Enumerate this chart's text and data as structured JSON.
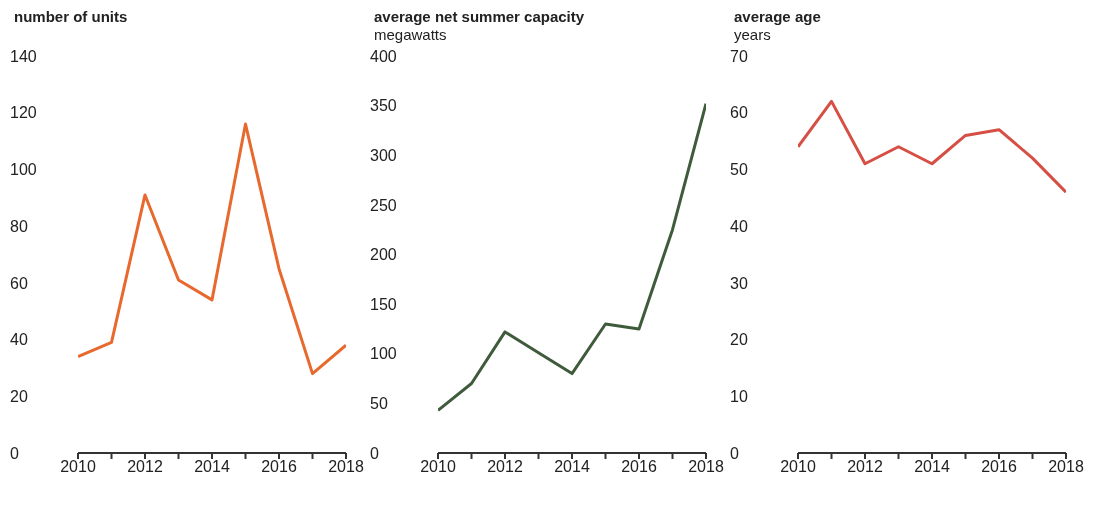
{
  "chart_data": [
    {
      "type": "line",
      "title": "number of units",
      "x": [
        2010,
        2011,
        2012,
        2013,
        2014,
        2015,
        2016,
        2017,
        2018
      ],
      "series": [
        {
          "color": "#e8692e",
          "values": [
            34,
            39,
            91,
            61,
            54,
            116,
            65,
            28,
            38
          ]
        }
      ],
      "xlim": [
        2010,
        2018
      ],
      "xticks": [
        2010,
        {
          "value": 2011,
          "label": null
        },
        2012,
        {
          "value": 2013,
          "label": null
        },
        2014,
        {
          "value": 2015,
          "label": null
        },
        2016,
        {
          "value": 2017,
          "label": null
        },
        2018
      ],
      "ylim": [
        0,
        140
      ],
      "yticks": [
        0,
        20,
        40,
        60,
        80,
        100,
        120,
        140
      ],
      "grid": false,
      "legend": false
    },
    {
      "type": "line",
      "title": "average net summer capacity",
      "ylabel": "megawatts",
      "x": [
        2010,
        2011,
        2012,
        2013,
        2014,
        2015,
        2016,
        2017,
        2018
      ],
      "series": [
        {
          "color": "#3f5b3c",
          "values": [
            43,
            70,
            122,
            101,
            80,
            130,
            125,
            225,
            352
          ]
        }
      ],
      "xlim": [
        2010,
        2018
      ],
      "xticks": [
        2010,
        {
          "value": 2011,
          "label": null
        },
        2012,
        {
          "value": 2013,
          "label": null
        },
        2014,
        {
          "value": 2015,
          "label": null
        },
        2016,
        {
          "value": 2017,
          "label": null
        },
        2018
      ],
      "ylim": [
        0,
        400
      ],
      "yticks": [
        0,
        50,
        100,
        150,
        200,
        250,
        300,
        350,
        400
      ],
      "grid": false,
      "legend": false
    },
    {
      "type": "line",
      "title": "average age",
      "ylabel": "years",
      "x": [
        2010,
        2011,
        2012,
        2013,
        2014,
        2015,
        2016,
        2017,
        2018
      ],
      "series": [
        {
          "color": "#d64f45",
          "values": [
            54,
            62,
            51,
            54,
            51,
            56,
            57,
            52,
            46
          ]
        }
      ],
      "xlim": [
        2010,
        2018
      ],
      "xticks": [
        2010,
        {
          "value": 2011,
          "label": null
        },
        2012,
        {
          "value": 2013,
          "label": null
        },
        2014,
        {
          "value": 2015,
          "label": null
        },
        2016,
        {
          "value": 2017,
          "label": null
        },
        2018
      ],
      "ylim": [
        0,
        70
      ],
      "yticks": [
        0,
        10,
        20,
        30,
        40,
        50,
        60,
        70
      ],
      "grid": false,
      "legend": false
    }
  ]
}
